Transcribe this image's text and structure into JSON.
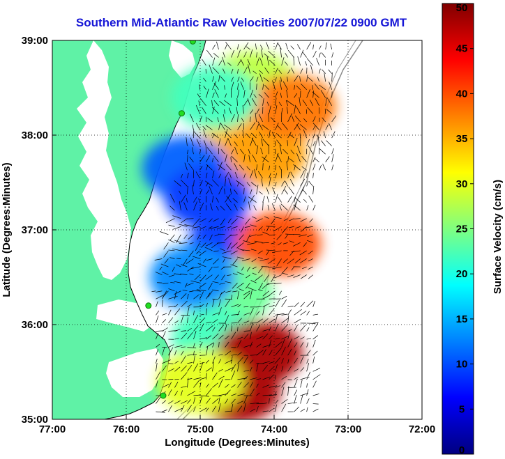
{
  "chart_data": {
    "type": "heatmap",
    "title": "Southern Mid-Atlantic Raw Velocities 2007/07/22 0900 GMT",
    "xlabel": "Longitude (Degrees:Minutes)",
    "ylabel": "Latitude (Degrees:Minutes)",
    "colorbar_label": "Surface Velocity (cm/s)",
    "x_ticks": [
      "77:00",
      "76:00",
      "75:00",
      "74:00",
      "73:00",
      "72:00"
    ],
    "y_ticks": [
      "35:00",
      "36:00",
      "37:00",
      "38:00",
      "39:00"
    ],
    "x_range": [
      -77,
      -72
    ],
    "y_range": [
      35,
      39
    ],
    "colorbar_range": [
      0,
      50
    ],
    "colorbar_ticks": [
      "0",
      "5",
      "10",
      "15",
      "20",
      "25",
      "30",
      "35",
      "40",
      "45",
      "50"
    ],
    "grid": true,
    "colormap": "jet",
    "land_color": "#5ff2a6",
    "arrow_color": "#000000",
    "station_color": "#22dd22",
    "stations": [
      {
        "lon": -75.1,
        "lat": 38.99
      },
      {
        "lon": -75.25,
        "lat": 38.23
      },
      {
        "lon": -75.7,
        "lat": 36.2
      },
      {
        "lon": -75.5,
        "lat": 35.25
      }
    ],
    "velocity_regions": [
      {
        "lon": -74.3,
        "lat": 38.55,
        "speed": 28
      },
      {
        "lon": -74.4,
        "lat": 38.0,
        "speed": 34
      },
      {
        "lon": -74.15,
        "lat": 37.8,
        "speed": 36
      },
      {
        "lon": -73.75,
        "lat": 38.3,
        "speed": 38
      },
      {
        "lon": -74.8,
        "lat": 38.4,
        "speed": 22
      },
      {
        "lon": -75.2,
        "lat": 37.65,
        "speed": 11
      },
      {
        "lon": -74.9,
        "lat": 37.35,
        "speed": 9
      },
      {
        "lon": -74.6,
        "lat": 36.8,
        "speed": 9
      },
      {
        "lon": -73.95,
        "lat": 36.85,
        "speed": 40
      },
      {
        "lon": -74.6,
        "lat": 36.35,
        "speed": 24
      },
      {
        "lon": -75.1,
        "lat": 36.5,
        "speed": 13
      },
      {
        "lon": -74.8,
        "lat": 35.85,
        "speed": 22
      },
      {
        "lon": -74.2,
        "lat": 35.7,
        "speed": 48
      },
      {
        "lon": -74.5,
        "lat": 35.3,
        "speed": 48
      },
      {
        "lon": -75.0,
        "lat": 35.4,
        "speed": 30
      }
    ]
  }
}
